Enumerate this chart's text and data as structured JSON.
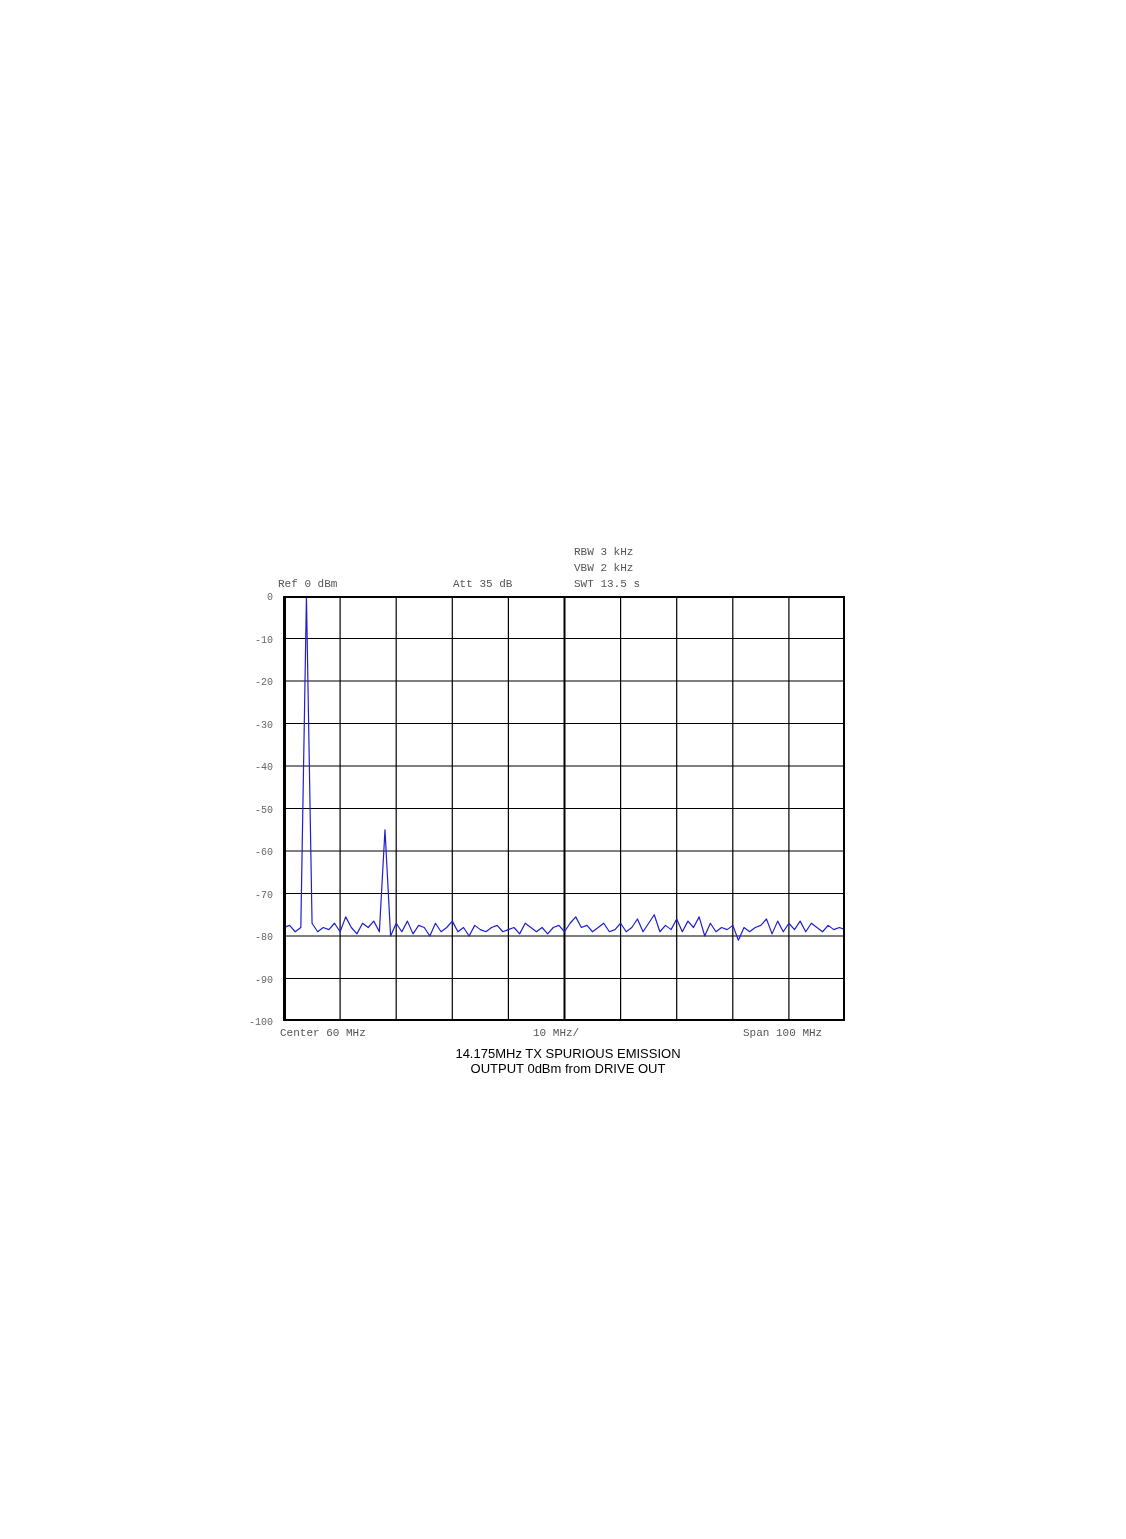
{
  "chart_data": {
    "type": "line",
    "title": "14.175MHz TX SPURIOUS EMISSION",
    "subtitle": "OUTPUT 0dBm from DRIVE OUT",
    "annotations": [
      "Ref 0 dBm",
      "Att 35 dB",
      "RBW 3 kHz",
      "VBW 2 kHz",
      "SWT 13.5 s",
      "Center 60 MHz",
      "10 MHz/",
      "Span 100 MHz"
    ],
    "categories": [
      null,
      null,
      null,
      null,
      null,
      null,
      null,
      null,
      null,
      null,
      null,
      null,
      null,
      null,
      null,
      null,
      null,
      null,
      null,
      null,
      null,
      null,
      null,
      null,
      null,
      null,
      null,
      null,
      null,
      null,
      null,
      null,
      null,
      null,
      null,
      null,
      null,
      null,
      null,
      null,
      null,
      null,
      null,
      null,
      null,
      null,
      null,
      null,
      null,
      null,
      null,
      null,
      null,
      null,
      null,
      null,
      null,
      null,
      null,
      null,
      null,
      null,
      null,
      null,
      null,
      null,
      null,
      null,
      null,
      null,
      null,
      null,
      null,
      null,
      null,
      null,
      null,
      null,
      null,
      null,
      null,
      null,
      null,
      null,
      null,
      null,
      null,
      null,
      null,
      null,
      null,
      null,
      null,
      null,
      null,
      null,
      null,
      null,
      null,
      null,
      null
    ],
    "series": [
      {
        "color": "#1f1fd0",
        "values": [
          -78,
          -77.5,
          -79,
          -78,
          0,
          -77,
          -79,
          -78,
          -78.5,
          -77,
          -79,
          -75.5,
          -78,
          -79.5,
          -77,
          -78,
          -76.5,
          -79,
          -55,
          -80,
          -77,
          -79,
          -76.5,
          -79.5,
          -77.5,
          -78,
          -80,
          -77,
          -79,
          -78,
          -76.5,
          -79,
          -78,
          -80,
          -77.5,
          -78.5,
          -79,
          -78,
          -77.5,
          -79,
          -78.5,
          -78,
          -79.5,
          -77,
          -78,
          -79,
          -78,
          -79.5,
          -78,
          -77.5,
          -79,
          -77,
          -75.5,
          -78,
          -77.5,
          -79,
          -78,
          -77,
          -79,
          -78.5,
          -77,
          -79,
          -78,
          -76,
          -79,
          -77,
          -75,
          -79,
          -77.5,
          -78.5,
          -76,
          -79,
          -76.5,
          -78,
          -75.5,
          -80,
          -77,
          -79,
          -78,
          -78.5,
          -77.5,
          -81,
          -78,
          -79,
          -78,
          -77.5,
          -76,
          -79.5,
          -76.5,
          -79,
          -77,
          -78.5,
          -76.5,
          -79,
          -77,
          -78,
          -79,
          -77.5,
          -78.5,
          -78,
          -78.5
        ]
      }
    ],
    "ylim": [
      -100,
      0
    ],
    "yticks": [
      0,
      -10,
      -20,
      -30,
      -40,
      -50,
      -60,
      -70,
      -80,
      -90,
      -100
    ],
    "grid": true,
    "tick_labels": "y",
    "marker": "none",
    "line_style": "solid"
  }
}
